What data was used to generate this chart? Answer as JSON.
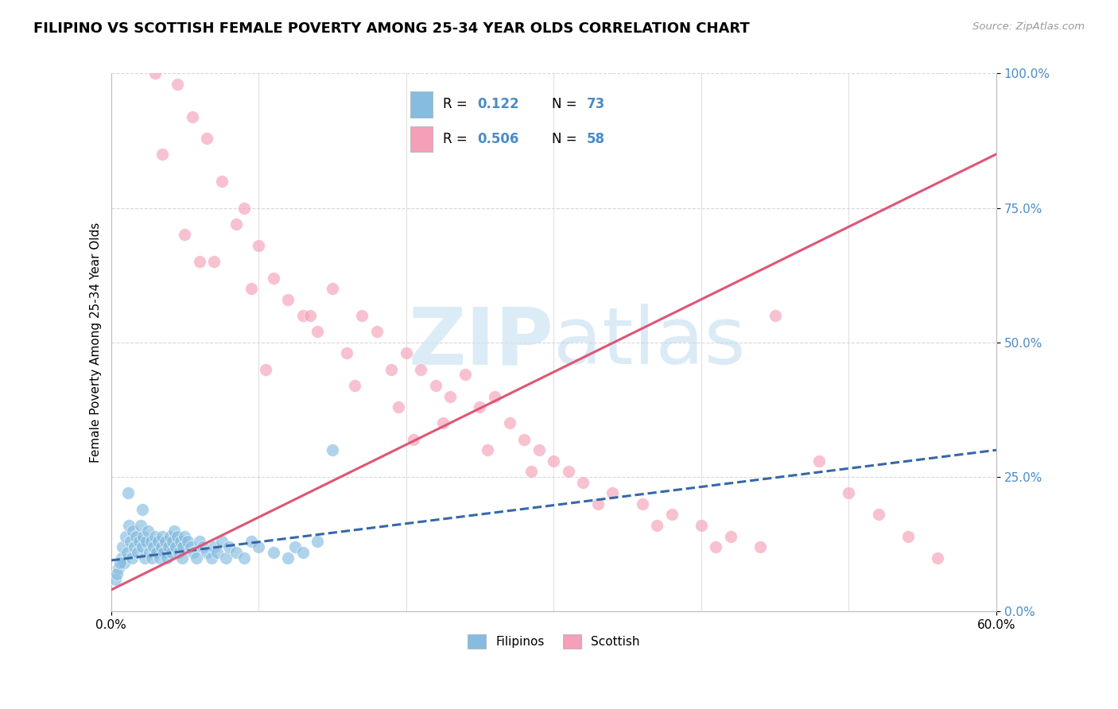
{
  "title": "FILIPINO VS SCOTTISH FEMALE POVERTY AMONG 25-34 YEAR OLDS CORRELATION CHART",
  "source": "Source: ZipAtlas.com",
  "ylabel": "Female Poverty Among 25-34 Year Olds",
  "ytick_vals": [
    0,
    25,
    50,
    75,
    100
  ],
  "xlim": [
    0,
    60
  ],
  "ylim": [
    0,
    100
  ],
  "filipino_R": 0.122,
  "filipino_N": 73,
  "scottish_R": 0.506,
  "scottish_N": 58,
  "blue_scatter_color": "#85bce0",
  "pink_scatter_color": "#f4a0b8",
  "blue_line_color": "#3568a8",
  "pink_line_color": "#e05575",
  "blue_tick_color": "#4a8cc8",
  "grid_color": "#d8d8d8",
  "legend_blue_label": "Filipinos",
  "legend_pink_label": "Scottish",
  "watermark_color": "#cce5f5",
  "title_fontsize": 13,
  "tick_fontsize": 11,
  "scottish_x": [
    3.0,
    4.5,
    5.5,
    6.5,
    7.5,
    8.5,
    9.0,
    10.0,
    11.0,
    12.0,
    13.0,
    14.0,
    15.0,
    16.0,
    17.0,
    18.0,
    19.0,
    20.0,
    21.0,
    22.0,
    23.0,
    24.0,
    25.0,
    26.0,
    27.0,
    28.0,
    29.0,
    30.0,
    31.0,
    32.0,
    34.0,
    36.0,
    38.0,
    40.0,
    42.0,
    44.0,
    3.5,
    5.0,
    6.0,
    9.5,
    13.5,
    16.5,
    19.5,
    22.5,
    25.5,
    28.5,
    33.0,
    37.0,
    41.0,
    45.0,
    48.0,
    50.0,
    52.0,
    54.0,
    56.0,
    7.0,
    10.5,
    20.5
  ],
  "scottish_y": [
    100.0,
    98.0,
    92.0,
    88.0,
    80.0,
    72.0,
    75.0,
    68.0,
    62.0,
    58.0,
    55.0,
    52.0,
    60.0,
    48.0,
    55.0,
    52.0,
    45.0,
    48.0,
    45.0,
    42.0,
    40.0,
    44.0,
    38.0,
    40.0,
    35.0,
    32.0,
    30.0,
    28.0,
    26.0,
    24.0,
    22.0,
    20.0,
    18.0,
    16.0,
    14.0,
    12.0,
    85.0,
    70.0,
    65.0,
    60.0,
    55.0,
    42.0,
    38.0,
    35.0,
    30.0,
    26.0,
    20.0,
    16.0,
    12.0,
    55.0,
    28.0,
    22.0,
    18.0,
    14.0,
    10.0,
    65.0,
    45.0,
    32.0
  ],
  "filipino_x": [
    0.5,
    0.7,
    0.8,
    0.9,
    1.0,
    1.1,
    1.2,
    1.3,
    1.4,
    1.5,
    1.6,
    1.7,
    1.8,
    1.9,
    2.0,
    2.1,
    2.2,
    2.3,
    2.4,
    2.5,
    2.6,
    2.7,
    2.8,
    2.9,
    3.0,
    3.1,
    3.2,
    3.3,
    3.4,
    3.5,
    3.6,
    3.7,
    3.8,
    3.9,
    4.0,
    4.1,
    4.2,
    4.3,
    4.4,
    4.5,
    4.6,
    4.7,
    4.8,
    4.9,
    5.0,
    5.2,
    5.4,
    5.6,
    5.8,
    6.0,
    6.2,
    6.5,
    6.8,
    7.0,
    7.2,
    7.5,
    7.8,
    8.0,
    8.5,
    9.0,
    9.5,
    10.0,
    11.0,
    12.0,
    12.5,
    13.0,
    14.0,
    15.0,
    0.3,
    0.4,
    0.6,
    1.15,
    2.15
  ],
  "filipino_y": [
    8,
    10,
    12,
    9,
    14,
    11,
    16,
    13,
    10,
    15,
    12,
    14,
    11,
    13,
    16,
    12,
    14,
    10,
    13,
    15,
    11,
    13,
    10,
    12,
    14,
    11,
    13,
    10,
    12,
    14,
    11,
    13,
    10,
    12,
    14,
    11,
    13,
    15,
    12,
    14,
    11,
    13,
    10,
    12,
    14,
    13,
    12,
    11,
    10,
    13,
    12,
    11,
    10,
    12,
    11,
    13,
    10,
    12,
    11,
    10,
    13,
    12,
    11,
    10,
    12,
    11,
    13,
    30,
    6,
    7,
    9,
    22,
    19
  ],
  "fil_trend_x0": 0,
  "fil_trend_y0": 9.5,
  "fil_trend_x1": 60,
  "fil_trend_y1": 30.0,
  "sco_trend_x0": 0,
  "sco_trend_y0": 4.0,
  "sco_trend_x1": 60,
  "sco_trend_y1": 85.0
}
